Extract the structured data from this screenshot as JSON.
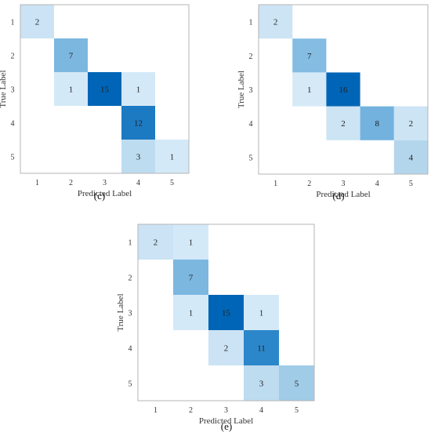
{
  "chart_data": [
    {
      "type": "heatmap",
      "caption": "(c)",
      "x_categories": [
        "1",
        "2",
        "3",
        "4",
        "5"
      ],
      "y_categories": [
        "1",
        "2",
        "3",
        "4",
        "5"
      ],
      "xlabel": "Predicted Label",
      "ylabel": "True Label",
      "values": [
        [
          2,
          0,
          0,
          0,
          0
        ],
        [
          0,
          7,
          0,
          0,
          0
        ],
        [
          0,
          1,
          15,
          1,
          0
        ],
        [
          0,
          0,
          0,
          12,
          0
        ],
        [
          0,
          0,
          0,
          3,
          1
        ]
      ]
    },
    {
      "type": "heatmap",
      "caption": "(d)",
      "x_categories": [
        "1",
        "2",
        "3",
        "4",
        "5"
      ],
      "y_categories": [
        "1",
        "2",
        "3",
        "4",
        "5"
      ],
      "xlabel": "Predicted Label",
      "ylabel": "True Label",
      "values": [
        [
          2,
          0,
          0,
          0,
          0
        ],
        [
          0,
          7,
          0,
          0,
          0
        ],
        [
          0,
          1,
          16,
          0,
          0
        ],
        [
          0,
          0,
          2,
          8,
          2
        ],
        [
          0,
          0,
          0,
          0,
          4
        ]
      ]
    },
    {
      "type": "heatmap",
      "caption": "(e)",
      "x_categories": [
        "1",
        "2",
        "3",
        "4",
        "5"
      ],
      "y_categories": [
        "1",
        "2",
        "3",
        "4",
        "5"
      ],
      "xlabel": "Predicted Label",
      "ylabel": "True Label",
      "values": [
        [
          2,
          1,
          0,
          0,
          0
        ],
        [
          0,
          7,
          0,
          0,
          0
        ],
        [
          0,
          1,
          15,
          1,
          0
        ],
        [
          0,
          0,
          2,
          11,
          0
        ],
        [
          0,
          0,
          0,
          3,
          5
        ]
      ]
    }
  ]
}
